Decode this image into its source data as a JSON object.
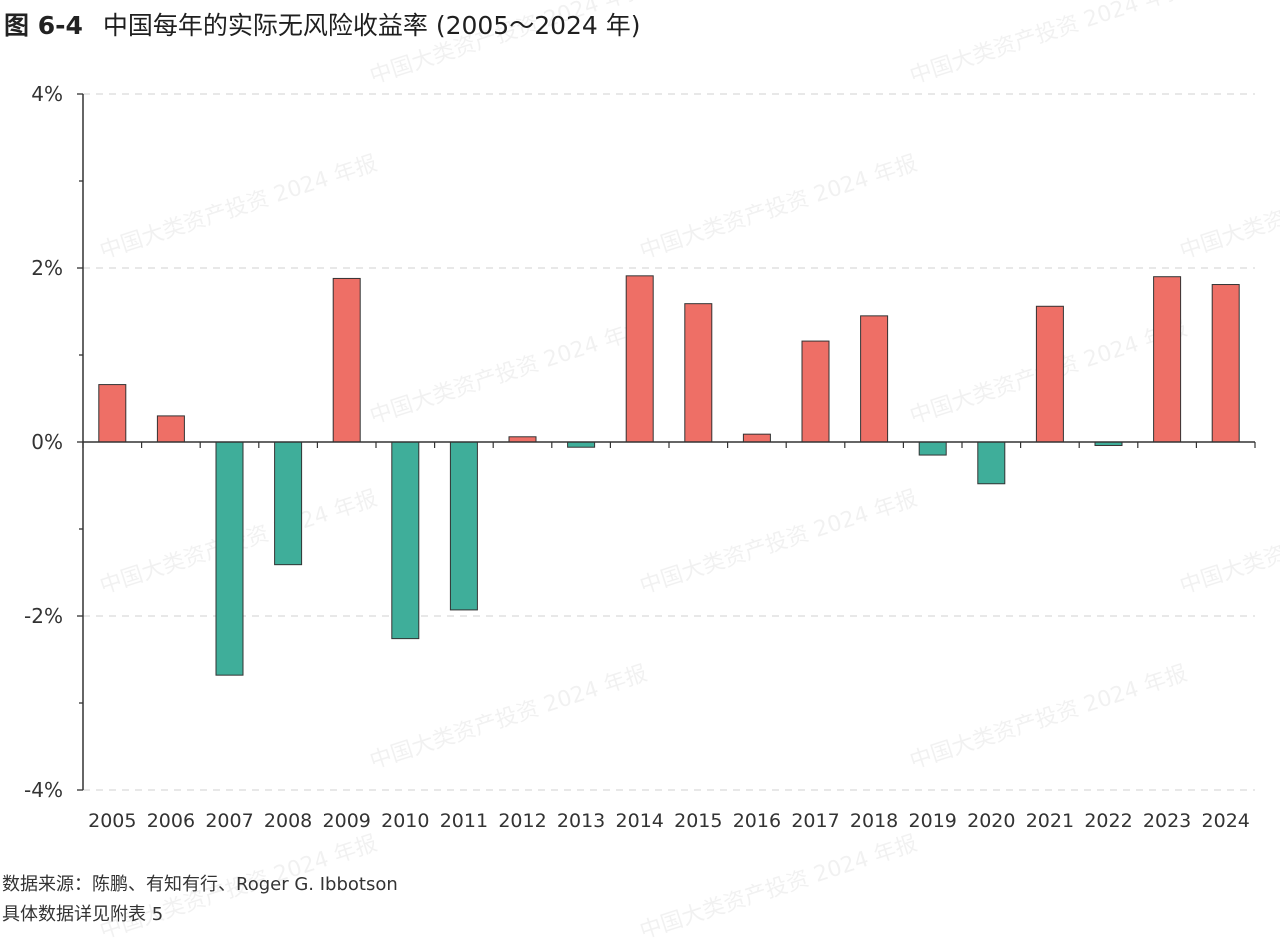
{
  "figure": {
    "number": "图 6-4",
    "title": "中国每年的实际无风险收益率 (2005～2024 年)"
  },
  "watermark_text": "中国大类资产投资 2024 年报",
  "footer": {
    "source": "数据来源：陈鹏、有知有行、Roger G. Ibbotson",
    "note": "具体数据详见附表 5"
  },
  "colors": {
    "positive": "#ee6f66",
    "negative": "#3fae9a",
    "axis": "#333333",
    "grid": "#d9d9d9"
  },
  "chart_data": {
    "type": "bar",
    "title": "中国每年的实际无风险收益率 (2005～2024 年)",
    "categories": [
      "2005",
      "2006",
      "2007",
      "2008",
      "2009",
      "2010",
      "2011",
      "2012",
      "2013",
      "2014",
      "2015",
      "2016",
      "2017",
      "2018",
      "2019",
      "2020",
      "2021",
      "2022",
      "2023",
      "2024"
    ],
    "values": [
      0.66,
      0.3,
      -2.68,
      -1.41,
      1.88,
      -2.26,
      -1.93,
      0.06,
      -0.06,
      1.91,
      1.59,
      0.09,
      1.16,
      1.45,
      -0.15,
      -0.48,
      1.56,
      -0.04,
      1.9,
      1.81
    ],
    "y_unit": "%",
    "ylim": [
      -4,
      4
    ],
    "yticks": [
      -4,
      -2,
      0,
      2,
      4
    ],
    "ytick_labels": [
      "-4%",
      "-2%",
      "0%",
      "2%",
      "4%"
    ],
    "grid": "horizontal dashed at labeled ticks",
    "legend": "none"
  }
}
